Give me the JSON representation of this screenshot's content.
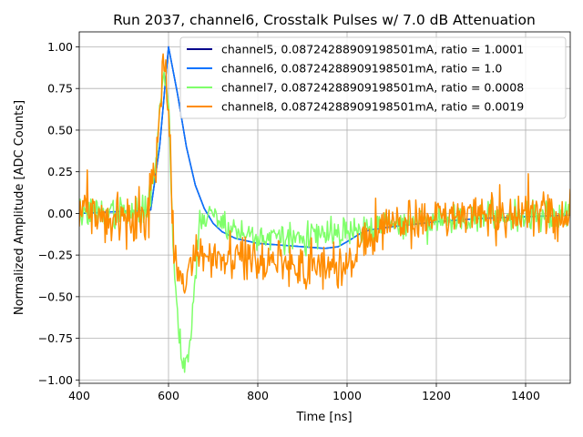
{
  "chart_data": {
    "type": "line",
    "title": "Run 2037, channel6, Crosstalk Pulses w/ 7.0 dB Attenuation",
    "xlabel": "Time [ns]",
    "ylabel": "Normalized Amplitude [ADC Counts]",
    "xlim": [
      400,
      1500
    ],
    "ylim": [
      -1.02,
      1.09
    ],
    "grid": true,
    "legend_position": "top-right",
    "x_ticks": [
      400,
      600,
      800,
      1000,
      1200,
      1400
    ],
    "x_tick_labels": [
      "400",
      "600",
      "800",
      "1000",
      "1200",
      "1400"
    ],
    "y_ticks": [
      -1.0,
      -0.75,
      -0.5,
      -0.25,
      0.0,
      0.25,
      0.5,
      0.75,
      1.0
    ],
    "y_tick_labels": [
      "−1.00",
      "−0.75",
      "−0.50",
      "−0.25",
      "0.00",
      "0.25",
      "0.50",
      "0.75",
      "1.00"
    ],
    "series": [
      {
        "name": "channel5, 0.08724288909198501mA, ratio = 1.0001",
        "color": "#00008b",
        "x": [
          400,
          560,
          580,
          600,
          620,
          640,
          660,
          680,
          700,
          720,
          750,
          800,
          850,
          900,
          950,
          980,
          1000,
          1030,
          1050,
          1100,
          1200,
          1300,
          1400,
          1500
        ],
        "y": [
          0.0,
          0.02,
          0.4,
          1.0,
          0.72,
          0.4,
          0.17,
          0.03,
          -0.06,
          -0.11,
          -0.15,
          -0.18,
          -0.19,
          -0.2,
          -0.21,
          -0.2,
          -0.17,
          -0.12,
          -0.1,
          -0.08,
          -0.05,
          -0.03,
          -0.02,
          -0.01
        ]
      },
      {
        "name": "channel6, 0.08724288909198501mA, ratio = 1.0",
        "color": "#0a74ff",
        "x": [
          400,
          560,
          580,
          600,
          620,
          640,
          660,
          680,
          700,
          720,
          750,
          800,
          850,
          900,
          950,
          980,
          1000,
          1030,
          1050,
          1100,
          1200,
          1300,
          1400,
          1500
        ],
        "y": [
          0.0,
          0.02,
          0.4,
          1.0,
          0.72,
          0.4,
          0.17,
          0.03,
          -0.06,
          -0.11,
          -0.15,
          -0.18,
          -0.19,
          -0.2,
          -0.21,
          -0.2,
          -0.17,
          -0.12,
          -0.1,
          -0.08,
          -0.05,
          -0.03,
          -0.02,
          -0.01
        ]
      },
      {
        "name": "channel7, 0.08724288909198501mA, ratio = 0.0008",
        "color": "#7fff6a",
        "x": [
          400,
          550,
          570,
          590,
          600,
          610,
          620,
          630,
          640,
          650,
          660,
          670,
          690,
          720,
          760,
          800,
          850,
          900,
          950,
          980,
          1000,
          1050,
          1100,
          1200,
          1300,
          1400,
          1500
        ],
        "y": [
          0.0,
          0.0,
          0.3,
          0.85,
          0.7,
          -0.2,
          -0.6,
          -0.85,
          -0.9,
          -0.75,
          -0.35,
          -0.05,
          0.0,
          -0.05,
          -0.12,
          -0.14,
          -0.15,
          -0.15,
          -0.13,
          -0.12,
          -0.12,
          -0.1,
          -0.07,
          -0.04,
          -0.02,
          -0.01,
          0.0
        ]
      },
      {
        "name": "channel8, 0.08724288909198501mA, ratio = 0.0019",
        "color": "#ff8c00",
        "x": [
          400,
          550,
          570,
          590,
          600,
          610,
          620,
          630,
          640,
          650,
          660,
          680,
          700,
          750,
          800,
          850,
          900,
          950,
          980,
          1000,
          1050,
          1100,
          1200,
          1300,
          1400,
          1500
        ],
        "y": [
          0.0,
          -0.05,
          0.3,
          0.9,
          0.6,
          -0.1,
          -0.35,
          -0.45,
          -0.4,
          -0.3,
          -0.25,
          -0.25,
          -0.27,
          -0.28,
          -0.3,
          -0.3,
          -0.32,
          -0.33,
          -0.35,
          -0.3,
          -0.1,
          -0.05,
          -0.03,
          -0.02,
          -0.02,
          -0.02
        ]
      }
    ]
  }
}
